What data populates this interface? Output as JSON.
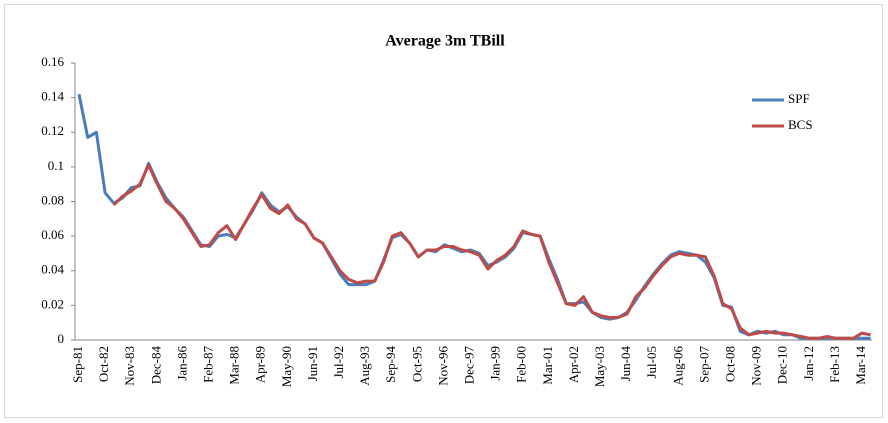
{
  "chart_data": {
    "type": "line",
    "title": "Average 3m TBill",
    "categories": [
      "Sep-81",
      null,
      null,
      "Oct-82",
      null,
      null,
      "Nov-83",
      null,
      null,
      "Dec-84",
      null,
      null,
      "Jan-86",
      null,
      null,
      "Feb-87",
      null,
      null,
      "Mar-88",
      null,
      null,
      "Apr-89",
      null,
      null,
      "May-90",
      null,
      null,
      "Jun-91",
      null,
      null,
      "Jul-92",
      null,
      null,
      "Aug-93",
      null,
      null,
      "Sep-94",
      null,
      null,
      "Oct-95",
      null,
      null,
      "Nov-96",
      null,
      null,
      "Dec-97",
      null,
      null,
      "Jan-99",
      null,
      null,
      "Feb-00",
      null,
      null,
      "Mar-01",
      null,
      null,
      "Apr-02",
      null,
      null,
      "May-03",
      null,
      null,
      "Jun-04",
      null,
      null,
      "Jul-05",
      null,
      null,
      "Aug-06",
      null,
      null,
      "Sep-07",
      null,
      null,
      "Oct-08",
      null,
      null,
      "Nov-09",
      null,
      null,
      "Dec-10",
      null,
      null,
      "Jan-12",
      null,
      null,
      "Feb-13",
      null,
      null,
      "Mar-14",
      null
    ],
    "series": [
      {
        "name": "SPF",
        "color": "#4a7ebb",
        "values": [
          0.142,
          0.117,
          0.12,
          0.085,
          0.079,
          0.082,
          0.088,
          0.089,
          0.102,
          0.091,
          0.082,
          0.076,
          0.071,
          0.063,
          0.055,
          0.054,
          0.06,
          0.061,
          0.059,
          0.067,
          0.075,
          0.085,
          0.078,
          0.074,
          0.077,
          0.071,
          0.067,
          0.059,
          0.056,
          0.047,
          0.038,
          0.032,
          0.032,
          0.032,
          0.034,
          0.046,
          0.059,
          0.061,
          0.056,
          0.048,
          0.052,
          0.051,
          0.055,
          0.053,
          0.051,
          0.052,
          0.05,
          0.043,
          0.045,
          0.048,
          0.053,
          0.062,
          0.061,
          0.06,
          0.047,
          0.035,
          0.021,
          0.021,
          0.022,
          0.016,
          0.013,
          0.012,
          0.013,
          0.016,
          0.023,
          0.031,
          0.038,
          0.044,
          0.049,
          0.051,
          0.05,
          0.049,
          0.045,
          0.036,
          0.02,
          0.019,
          0.005,
          0.003,
          0.005,
          0.004,
          0.005,
          0.003,
          0.003,
          0.001,
          0.001,
          0.001,
          0.001,
          0.001,
          0.001,
          0.001,
          0.001,
          0.001
        ]
      },
      {
        "name": "BCS",
        "color": "#be4b48",
        "values": [
          null,
          null,
          null,
          null,
          0.078,
          0.083,
          0.086,
          0.09,
          0.101,
          0.09,
          0.08,
          0.076,
          0.07,
          0.062,
          0.054,
          0.055,
          0.062,
          0.066,
          0.058,
          0.067,
          0.076,
          0.084,
          0.076,
          0.073,
          0.078,
          0.07,
          0.067,
          0.059,
          0.056,
          0.048,
          0.04,
          0.035,
          0.033,
          0.034,
          0.034,
          0.045,
          0.06,
          0.062,
          0.056,
          0.048,
          0.052,
          0.052,
          0.054,
          0.054,
          0.052,
          0.051,
          0.049,
          0.041,
          0.046,
          0.049,
          0.054,
          0.063,
          0.061,
          0.06,
          0.045,
          0.033,
          0.021,
          0.02,
          0.025,
          0.016,
          0.014,
          0.013,
          0.013,
          0.015,
          0.025,
          0.03,
          0.037,
          0.043,
          0.048,
          0.05,
          0.049,
          0.049,
          0.048,
          0.037,
          0.021,
          0.018,
          0.007,
          0.003,
          0.004,
          0.005,
          0.004,
          0.004,
          0.003,
          0.002,
          0.001,
          0.001,
          0.002,
          0.001,
          0.001,
          0.001,
          0.004,
          0.003
        ]
      }
    ],
    "ylim": [
      0,
      0.16
    ],
    "yticks": [
      0,
      0.02,
      0.04,
      0.06,
      0.08,
      0.1,
      0.12,
      0.14,
      0.16
    ],
    "legend": "right"
  }
}
